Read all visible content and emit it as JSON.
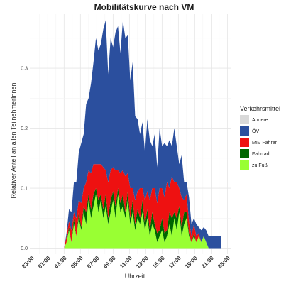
{
  "chart_data": {
    "type": "area",
    "stacked": true,
    "title": "Mobilitätskurve nach VM",
    "xlabel": "Uhrzeit",
    "ylabel": "Relativer Anteil an allen TeilnehmerInnen",
    "x_tick_labels": [
      "23:00",
      "01:00",
      "03:00",
      "05:00",
      "07:00",
      "09:00",
      "11:00",
      "13:00",
      "15:00",
      "17:00",
      "19:00",
      "21:00",
      "23:00"
    ],
    "x_tick_hours": [
      -1,
      1,
      3,
      5,
      7,
      9,
      11,
      13,
      15,
      17,
      19,
      21,
      23
    ],
    "xlim": [
      -1.2,
      23.4
    ],
    "y_tick_values": [
      0.0,
      0.1,
      0.2,
      0.3
    ],
    "y_tick_labels": [
      "0.0",
      "0.1",
      "0.2",
      "0.3"
    ],
    "ylim": [
      -0.01,
      0.39
    ],
    "grid": true,
    "legend_title": "Verkehrsmittel",
    "legend_position": "right",
    "series": [
      {
        "name": "zu Fuß",
        "color": "#99ff33",
        "x": [
          3.0,
          3.3,
          3.6,
          3.9,
          4.2,
          4.5,
          4.8,
          5.1,
          5.4,
          5.7,
          6.0,
          6.3,
          6.6,
          6.9,
          7.2,
          7.5,
          7.8,
          8.1,
          8.4,
          8.7,
          9.0,
          9.3,
          9.6,
          9.9,
          10.2,
          10.5,
          10.8,
          11.1,
          11.4,
          11.7,
          12.0,
          12.3,
          12.6,
          12.9,
          13.2,
          13.5,
          13.8,
          14.1,
          14.4,
          14.7,
          15.0,
          15.3,
          15.6,
          15.9,
          16.2,
          16.5,
          16.8,
          17.1,
          17.4,
          17.7,
          18.0,
          18.3,
          18.6,
          18.9,
          19.2,
          19.5,
          19.8,
          20.1,
          20.4,
          20.7,
          21.0,
          21.3,
          21.6,
          21.9,
          22.2
        ],
        "values": [
          0,
          0.01,
          0.03,
          0.01,
          0.04,
          0.02,
          0.05,
          0.03,
          0.06,
          0.04,
          0.08,
          0.05,
          0.07,
          0.09,
          0.06,
          0.08,
          0.05,
          0.07,
          0.04,
          0.06,
          0.08,
          0.05,
          0.09,
          0.06,
          0.07,
          0.05,
          0.08,
          0.04,
          0.06,
          0.03,
          0.05,
          0.04,
          0.06,
          0.03,
          0.05,
          0.02,
          0.04,
          0.03,
          0.01,
          0.02,
          0.03,
          0.01,
          0.02,
          0.04,
          0.02,
          0.05,
          0.03,
          0.06,
          0.02,
          0.04,
          0.05,
          0.02,
          0.01,
          0.02,
          0.01,
          0.02,
          0.01,
          0.02,
          0.01,
          0,
          0,
          0,
          0,
          0,
          0
        ]
      },
      {
        "name": "Fahrrad",
        "color": "#006600",
        "x": [
          3.0,
          3.3,
          3.6,
          3.9,
          4.2,
          4.5,
          4.8,
          5.1,
          5.4,
          5.7,
          6.0,
          6.3,
          6.6,
          6.9,
          7.2,
          7.5,
          7.8,
          8.1,
          8.4,
          8.7,
          9.0,
          9.3,
          9.6,
          9.9,
          10.2,
          10.5,
          10.8,
          11.1,
          11.4,
          11.7,
          12.0,
          12.3,
          12.6,
          12.9,
          13.2,
          13.5,
          13.8,
          14.1,
          14.4,
          14.7,
          15.0,
          15.3,
          15.6,
          15.9,
          16.2,
          16.5,
          16.8,
          17.1,
          17.4,
          17.7,
          18.0,
          18.3,
          18.6,
          18.9,
          19.2,
          19.5,
          19.8,
          20.1,
          20.4,
          20.7,
          21.0,
          21.3,
          21.6,
          21.9,
          22.2
        ],
        "values": [
          0,
          0,
          0.005,
          0,
          0.01,
          0,
          0.01,
          0.005,
          0.01,
          0.02,
          0.01,
          0.015,
          0.02,
          0.01,
          0.02,
          0.01,
          0.015,
          0.02,
          0.01,
          0.02,
          0.015,
          0.02,
          0.01,
          0.015,
          0.02,
          0.01,
          0.015,
          0.01,
          0.02,
          0.01,
          0.015,
          0.01,
          0.02,
          0.01,
          0.015,
          0.01,
          0.02,
          0.01,
          0.015,
          0.01,
          0.02,
          0.015,
          0.01,
          0.02,
          0.03,
          0.01,
          0.02,
          0.01,
          0.015,
          0.02,
          0.01,
          0.005,
          0,
          0.005,
          0,
          0,
          0,
          0,
          0,
          0,
          0,
          0,
          0,
          0,
          0
        ]
      },
      {
        "name": "MIV Fahrer",
        "color": "#ee1111",
        "x": [
          3.0,
          3.3,
          3.6,
          3.9,
          4.2,
          4.5,
          4.8,
          5.1,
          5.4,
          5.7,
          6.0,
          6.3,
          6.6,
          6.9,
          7.2,
          7.5,
          7.8,
          8.1,
          8.4,
          8.7,
          9.0,
          9.3,
          9.6,
          9.9,
          10.2,
          10.5,
          10.8,
          11.1,
          11.4,
          11.7,
          12.0,
          12.3,
          12.6,
          12.9,
          13.2,
          13.5,
          13.8,
          14.1,
          14.4,
          14.7,
          15.0,
          15.3,
          15.6,
          15.9,
          16.2,
          16.5,
          16.8,
          17.1,
          17.4,
          17.7,
          18.0,
          18.3,
          18.6,
          18.9,
          19.2,
          19.5,
          19.8,
          20.1,
          20.4,
          20.7,
          21.0,
          21.3,
          21.6,
          21.9,
          22.2
        ],
        "values": [
          0,
          0.01,
          0.01,
          0.02,
          0.01,
          0.03,
          0.02,
          0.04,
          0.03,
          0.05,
          0.04,
          0.06,
          0.05,
          0.04,
          0.06,
          0.05,
          0.07,
          0.04,
          0.06,
          0.05,
          0.04,
          0.06,
          0.03,
          0.05,
          0.04,
          0.06,
          0.03,
          0.05,
          0.02,
          0.04,
          0.03,
          0.05,
          0.02,
          0.04,
          0.03,
          0.05,
          0.04,
          0.06,
          0.05,
          0.07,
          0.05,
          0.06,
          0.08,
          0.04,
          0.07,
          0.05,
          0.06,
          0.03,
          0.05,
          0.02,
          0.03,
          0.02,
          0.01,
          0.015,
          0.01,
          0.005,
          0,
          0,
          0,
          0,
          0,
          0,
          0,
          0,
          0
        ]
      },
      {
        "name": "ÖV",
        "color": "#2b4f9e",
        "x": [
          3.0,
          3.3,
          3.6,
          3.9,
          4.2,
          4.5,
          4.8,
          5.1,
          5.4,
          5.7,
          6.0,
          6.3,
          6.6,
          6.9,
          7.2,
          7.5,
          7.8,
          8.1,
          8.4,
          8.7,
          9.0,
          9.3,
          9.6,
          9.9,
          10.2,
          10.5,
          10.8,
          11.1,
          11.4,
          11.7,
          12.0,
          12.3,
          12.6,
          12.9,
          13.2,
          13.5,
          13.8,
          14.1,
          14.4,
          14.7,
          15.0,
          15.3,
          15.6,
          15.9,
          16.2,
          16.5,
          16.8,
          17.1,
          17.4,
          17.7,
          18.0,
          18.3,
          18.6,
          18.9,
          19.2,
          19.5,
          19.8,
          20.1,
          20.4,
          20.7,
          21.0,
          21.3,
          21.6,
          21.9,
          22.2
        ],
        "values": [
          0,
          0.005,
          0.02,
          0.03,
          0.05,
          0.06,
          0.08,
          0.1,
          0.09,
          0.13,
          0.12,
          0.15,
          0.17,
          0.21,
          0.19,
          0.2,
          0.23,
          0.25,
          0.18,
          0.22,
          0.2,
          0.23,
          0.24,
          0.2,
          0.25,
          0.23,
          0.23,
          0.18,
          0.21,
          0.14,
          0.12,
          0.09,
          0.11,
          0.08,
          0.12,
          0.1,
          0.07,
          0.09,
          0.06,
          0.1,
          0.07,
          0.09,
          0.06,
          0.08,
          0.05,
          0.09,
          0.06,
          0.04,
          0.07,
          0.03,
          0.02,
          0.04,
          0.02,
          0.01,
          0.02,
          0.01,
          0.02,
          0.015,
          0.02,
          0.02,
          0.02,
          0.02,
          0.02,
          0.02,
          0.02
        ]
      },
      {
        "name": "Andere",
        "color": "#d9d9d9",
        "x": [
          3.0,
          22.2
        ],
        "values": [
          0,
          0
        ]
      }
    ],
    "legend_order": [
      "Andere",
      "ÖV",
      "MIV Fahrer",
      "Fahrrad",
      "zu Fuß"
    ]
  }
}
